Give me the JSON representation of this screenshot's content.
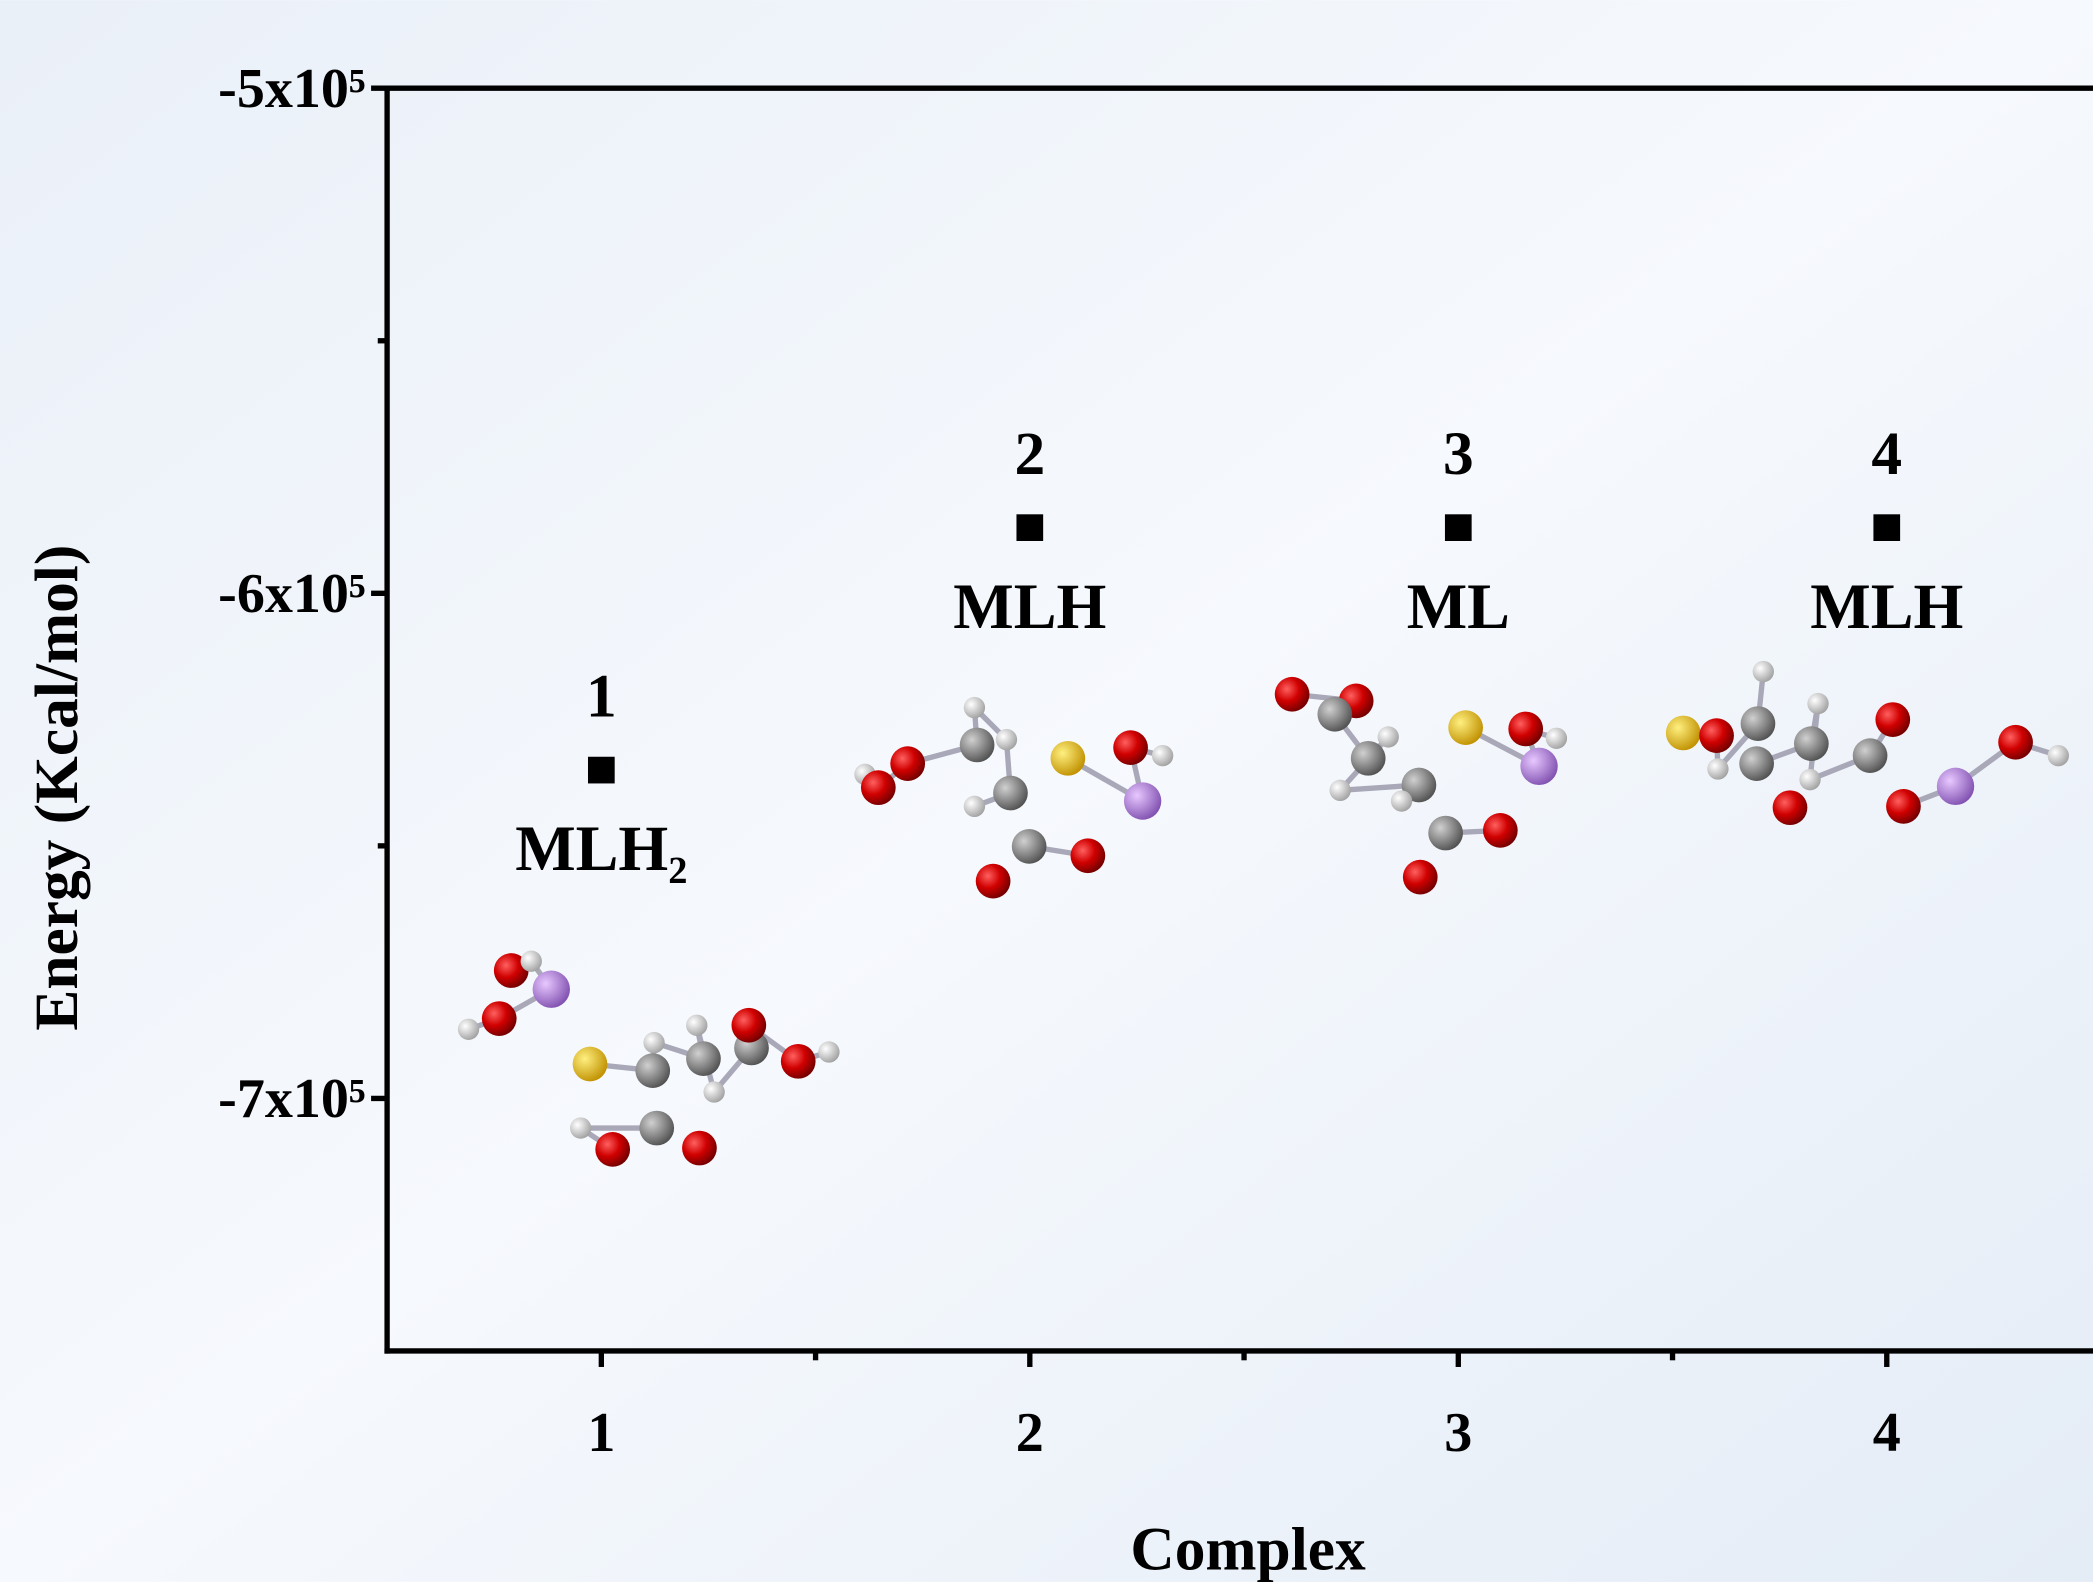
{
  "chart_data": {
    "type": "scatter",
    "xlabel": "Complex",
    "ylabel": "Energy (Kcal/mol)",
    "x": [
      1,
      2,
      3,
      4
    ],
    "series": [
      {
        "color": "#000000",
        "values": [
          -635000,
          -587000,
          -587000,
          -587000
        ]
      }
    ],
    "point_labels": [
      "1",
      "2",
      "3",
      "4"
    ],
    "names": [
      "MLH₂",
      "MLH",
      "ML",
      "MLH"
    ],
    "xlim": [
      0.5,
      4.5
    ],
    "xticks": [
      1,
      2,
      3,
      4
    ],
    "xminor_ticks": [
      1.5,
      2.5,
      3.5
    ],
    "ylim": [
      -750000,
      -500000
    ],
    "yticks": [
      {
        "value": -500000,
        "label": "-5x10⁵"
      },
      {
        "value": -600000,
        "label": "-6x10⁵"
      },
      {
        "value": -700000,
        "label": "-7x10⁵"
      }
    ],
    "yminor_ticks": [
      -550000,
      -650000
    ],
    "grid": false
  }
}
